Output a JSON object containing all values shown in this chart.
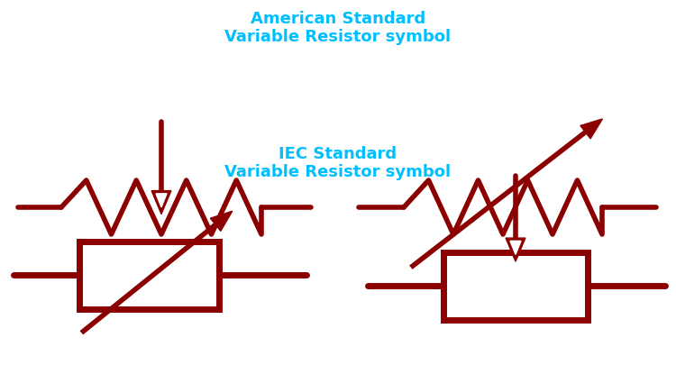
{
  "bg_color": "#ffffff",
  "resistor_color": "#8B0000",
  "text_color": "#00BFFF",
  "title1": "American Standard\nVariable Resistor symbol",
  "title2": "IEC Standard\nVariable Resistor symbol",
  "lw": 4.0
}
